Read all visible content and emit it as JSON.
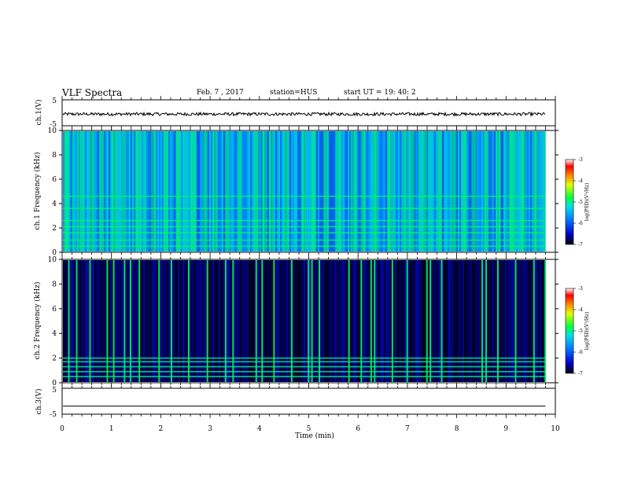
{
  "header": {
    "title": "VLF Spectra",
    "date": "Feb. 7 , 2017",
    "station": "station=HUS",
    "start": "start UT =   19: 40: 2"
  },
  "chart_data": [
    {
      "type": "line",
      "panel": "ch1_waveform",
      "ylabel": "ch.1(V)",
      "ylim": [
        -5,
        5
      ],
      "y_ticks": [
        "5",
        "-5"
      ],
      "xlim": [
        0,
        10
      ],
      "data_end_min": 9.8,
      "trace_level": -0.5,
      "trace_amplitude": 0.6
    },
    {
      "type": "heatmap",
      "panel": "ch1_spectrogram",
      "ylabel": "ch.1 Frequency (kHz)",
      "ylim": [
        0,
        10
      ],
      "y_ticks": [
        "0",
        "2",
        "4",
        "6",
        "8",
        "10"
      ],
      "xlim": [
        0,
        10
      ],
      "data_end_min": 9.8,
      "colorbar": {
        "label": "log(PSD)(V²/Hz)",
        "range": [
          -7,
          -3
        ],
        "ticks": [
          "-3",
          "-4",
          "-5",
          "-6",
          "-7"
        ]
      },
      "background_level": -5.6,
      "bright_lines_khz": [
        0.5,
        1.0,
        1.6,
        2.1,
        2.6,
        3.6,
        4.6
      ],
      "bright_times_min": [
        0.05,
        0.3,
        0.55,
        0.75,
        1.0,
        1.2,
        1.5,
        1.8,
        2.05,
        2.3,
        2.6,
        2.85,
        3.05,
        3.3,
        3.55,
        3.9,
        4.05,
        4.2,
        4.5,
        4.85,
        5.05,
        5.3,
        5.55,
        5.85,
        6.05,
        6.3,
        6.6,
        6.9,
        7.05,
        7.3,
        7.6,
        7.9,
        8.1,
        8.3,
        8.55,
        8.8,
        9.05,
        9.3,
        9.55
      ]
    },
    {
      "type": "heatmap",
      "panel": "ch2_spectrogram",
      "ylabel": "ch.2 Frequency (kHz)",
      "ylim": [
        0,
        10
      ],
      "y_ticks": [
        "0",
        "2",
        "4",
        "6",
        "8",
        "10"
      ],
      "xlim": [
        0,
        10
      ],
      "data_end_min": 9.8,
      "colorbar": {
        "label": "log(PSD)(V²/Hz)",
        "range": [
          -7,
          -3
        ],
        "ticks": [
          "-3",
          "-4",
          "-5",
          "-6",
          "-7"
        ]
      },
      "background_level": -6.8,
      "bright_lines_khz": [
        0.5,
        0.9,
        1.3,
        1.7,
        2.0
      ],
      "bright_times_min": [
        0.12,
        0.28,
        0.55,
        0.9,
        1.03,
        1.25,
        1.37,
        1.55,
        1.95,
        2.2,
        2.55,
        2.93,
        3.3,
        3.45,
        3.92,
        4.04,
        4.28,
        4.64,
        4.98,
        5.05,
        5.2,
        5.8,
        6.05,
        6.25,
        6.32,
        6.68,
        6.98,
        7.38,
        7.45,
        7.68,
        8.5,
        8.58,
        8.82,
        9.18,
        9.55,
        9.78
      ]
    },
    {
      "type": "line",
      "panel": "ch3_waveform",
      "ylabel": "ch.3(V)",
      "ylim": [
        -5,
        5
      ],
      "y_ticks": [
        "5",
        "-5"
      ],
      "xlim": [
        0,
        10
      ],
      "data_end_min": 9.8,
      "trace_level": -1
    }
  ],
  "x_axis": {
    "label": "Time (min)",
    "ticks": [
      "0",
      "1",
      "2",
      "3",
      "4",
      "5",
      "6",
      "7",
      "8",
      "9",
      "10"
    ]
  }
}
